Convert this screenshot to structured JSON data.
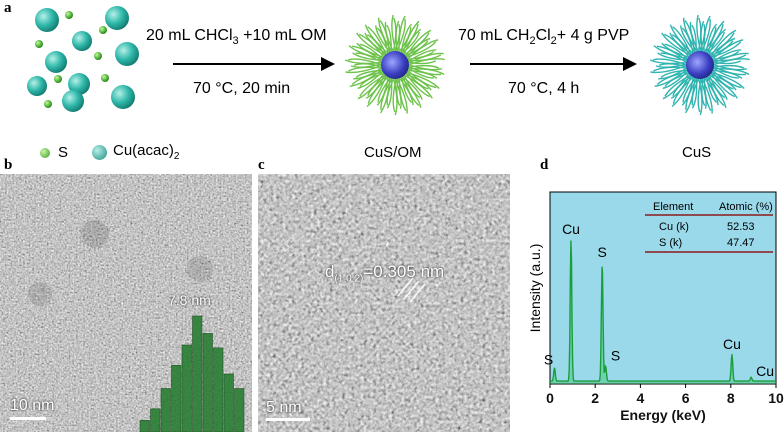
{
  "panels": {
    "a": "a",
    "b": "b",
    "c": "c",
    "d": "d"
  },
  "reaction": {
    "step1_top_prefix": "20 mL CHCl",
    "step1_top_sub": "3",
    "step1_top_suffix": " +10 mL OM",
    "step1_bottom": "70 °C,  20 min",
    "step2_top_prefix": "70 mL CH",
    "step2_top_sub1": "2",
    "step2_top_mid": "Cl",
    "step2_top_sub2": "2",
    "step2_top_suffix": "+ 4 g PVP",
    "step2_bottom": "70 °C,  4 h"
  },
  "legend": {
    "s_label": "S",
    "cu_label_prefix": "Cu(acac)",
    "cu_label_sub": "2",
    "colors": {
      "s": "#5cc04a",
      "cu": "#27b3a6"
    }
  },
  "labels": {
    "cus_om": "CuS/OM",
    "cus": "CuS"
  },
  "panel_b": {
    "scale_label": "10 nm",
    "size_label": "7.8 nm"
  },
  "panel_c": {
    "d_prefix": "d",
    "d_sub": "(1 0 2)",
    "d_value": "=0.305 nm",
    "scale_label": "5 nm"
  },
  "chart_data": {
    "type": "line",
    "xlabel": "Energy (keV)",
    "ylabel": "Intensity (a.u.)",
    "xlim": [
      0,
      10
    ],
    "xticks": [
      0,
      2,
      4,
      6,
      8,
      10
    ],
    "background": "#99d9ea",
    "line_color": "#1a9e3a",
    "peaks": [
      {
        "label": "S",
        "x": 0.2,
        "rel_height": 0.07
      },
      {
        "label": "Cu",
        "x": 0.93,
        "rel_height": 0.74
      },
      {
        "label": "S",
        "x": 2.31,
        "rel_height": 0.62
      },
      {
        "label": "S",
        "x": 2.46,
        "rel_height": 0.08
      },
      {
        "label": "Cu",
        "x": 8.05,
        "rel_height": 0.14
      },
      {
        "label": "Cu",
        "x": 8.9,
        "rel_height": 0.02
      }
    ],
    "table": {
      "headers": [
        "Element",
        "Atomic (%)"
      ],
      "rows": [
        [
          "Cu (k)",
          "52.53"
        ],
        [
          "S  (k)",
          "47.47"
        ]
      ]
    }
  },
  "histogram": {
    "values": [
      8,
      16,
      30,
      46,
      60,
      80,
      68,
      58,
      40,
      30
    ],
    "color": "#1f7a2a"
  }
}
